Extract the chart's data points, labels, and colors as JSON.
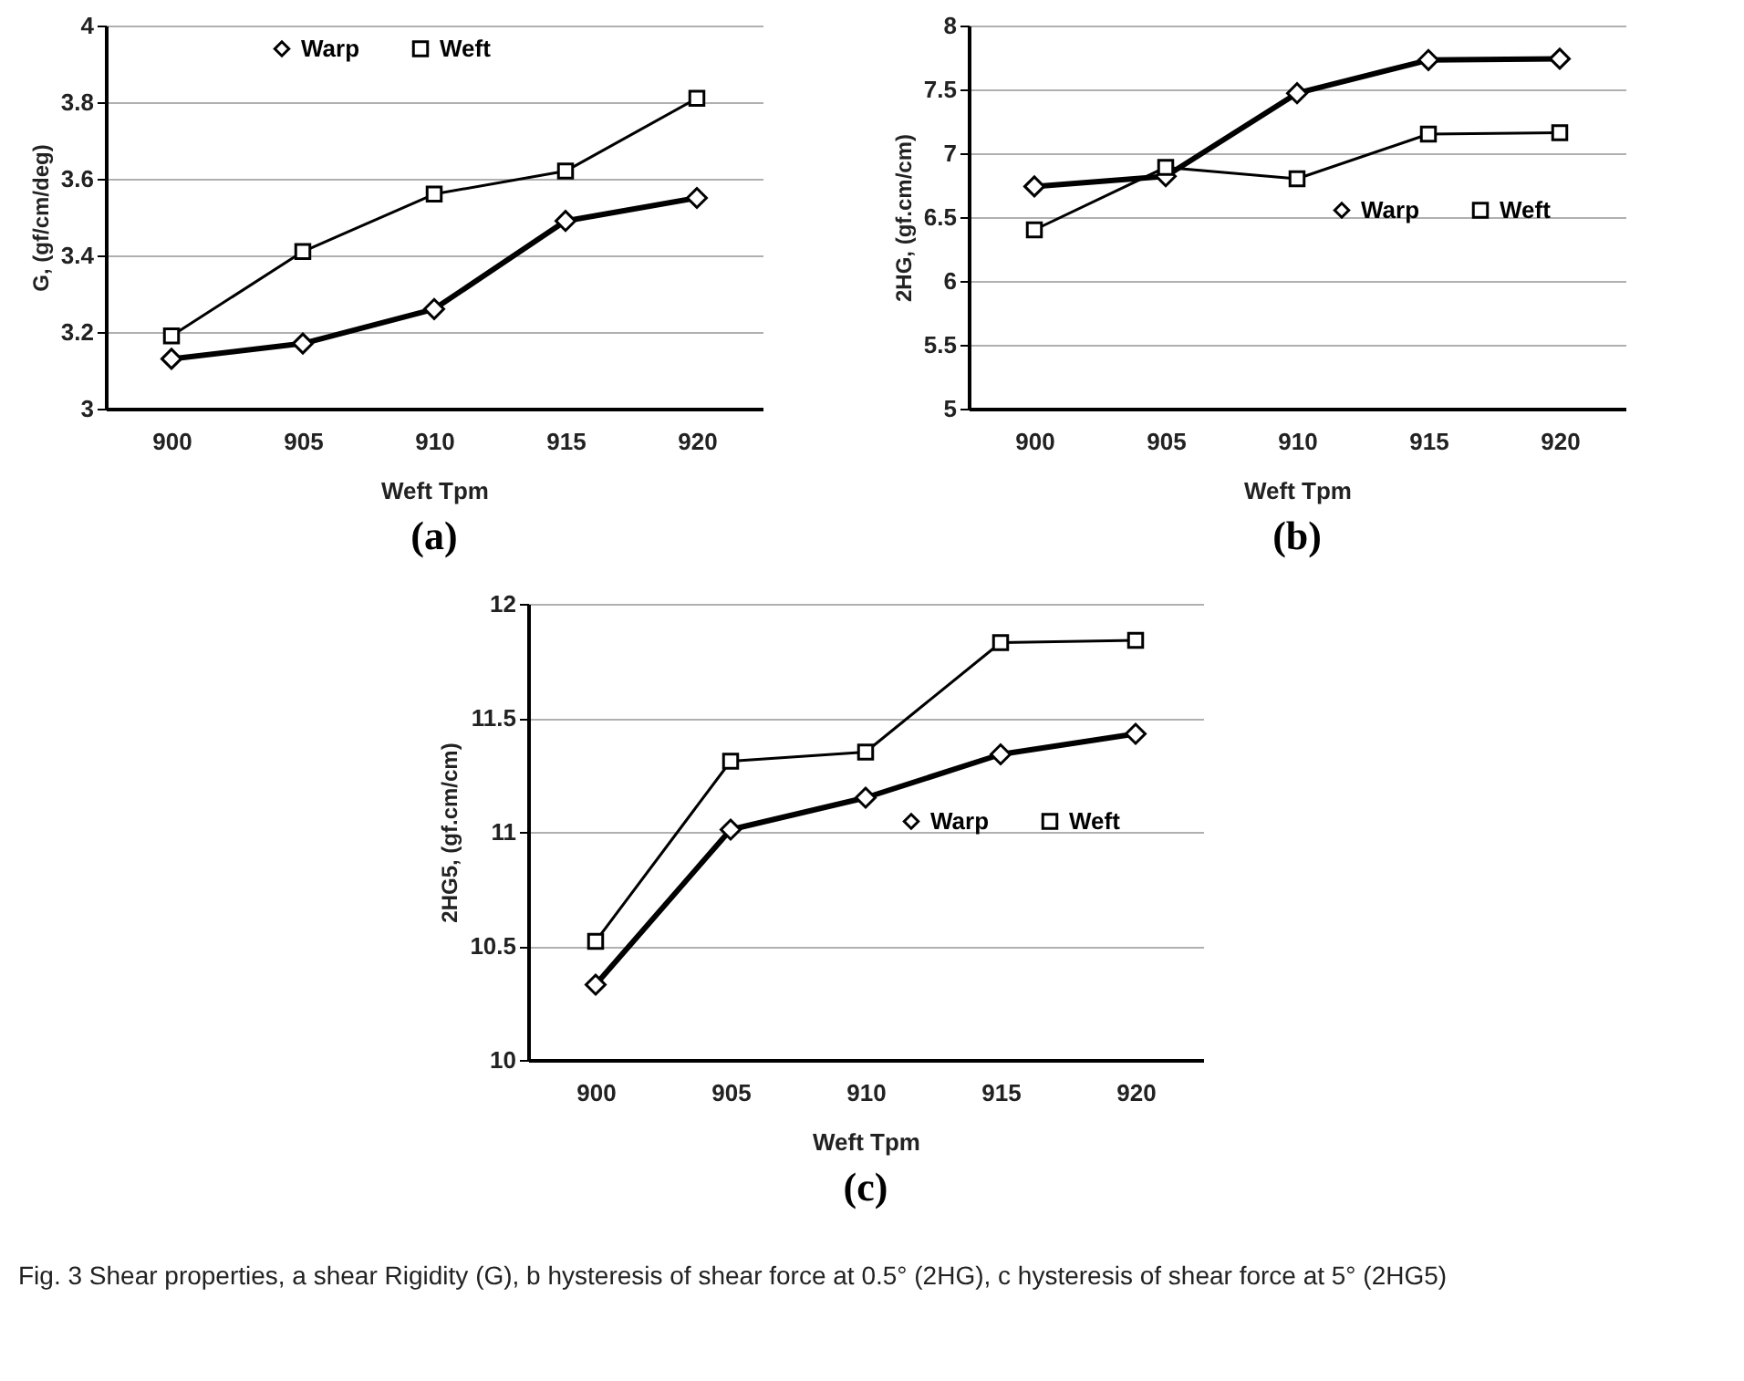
{
  "chart_data": [
    {
      "type": "line",
      "title": "(a)",
      "xlabel": "Weft Tpm",
      "ylabel": "G, (gf/cm/deg)",
      "categories": [
        "900",
        "905",
        "910",
        "915",
        "920"
      ],
      "ylim": [
        3,
        4
      ],
      "yticks": [
        3,
        3.2,
        3.4,
        3.6,
        3.8,
        4
      ],
      "grid": "y",
      "legend": "top",
      "series": [
        {
          "name": "Warp",
          "color": "#000000",
          "marker": "diamond",
          "values": [
            3.13,
            3.17,
            3.26,
            3.49,
            3.55
          ]
        },
        {
          "name": "Weft",
          "color": "#000000",
          "marker": "square",
          "values": [
            3.19,
            3.41,
            3.56,
            3.62,
            3.81
          ]
        }
      ]
    },
    {
      "type": "line",
      "title": "(b)",
      "xlabel": "Weft  Tpm",
      "ylabel": "2HG, (gf.cm/cm)",
      "categories": [
        "900",
        "905",
        "910",
        "915",
        "920"
      ],
      "ylim": [
        5,
        8
      ],
      "yticks": [
        5,
        5.5,
        6,
        6.5,
        7,
        7.5,
        8
      ],
      "grid": "y",
      "legend": "right",
      "series": [
        {
          "name": "Warp",
          "color": "#000000",
          "marker": "diamond",
          "values": [
            6.74,
            6.82,
            7.47,
            7.73,
            7.74
          ]
        },
        {
          "name": "Weft",
          "color": "#000000",
          "marker": "square",
          "values": [
            6.4,
            6.89,
            6.8,
            7.15,
            7.16
          ]
        }
      ]
    },
    {
      "type": "line",
      "title": "(c)",
      "xlabel": "Weft Tpm",
      "ylabel": "2HG5, (gf.cm/cm)",
      "categories": [
        "900",
        "905",
        "910",
        "915",
        "920"
      ],
      "ylim": [
        10,
        12
      ],
      "yticks": [
        10,
        10.5,
        11,
        11.5,
        12
      ],
      "grid": "y",
      "legend": "right",
      "annotations": [
        "Fig. 3  Shear properties, a shear Rigidity (G), b hysteresis of shear force at 0.5° (2HG), c hysteresis of shear force at 5° (2HG5)"
      ],
      "series": [
        {
          "name": "Warp",
          "color": "#000000",
          "marker": "diamond",
          "values": [
            10.33,
            11.01,
            11.15,
            11.34,
            11.43
          ]
        },
        {
          "name": "Weft",
          "color": "#000000",
          "marker": "square",
          "values": [
            10.52,
            11.31,
            11.35,
            11.83,
            11.84
          ]
        }
      ]
    }
  ]
}
